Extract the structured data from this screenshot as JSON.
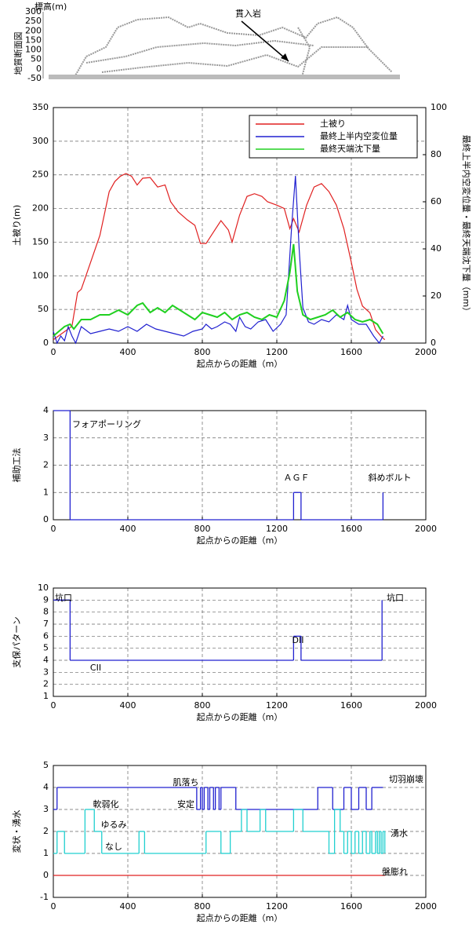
{
  "geology_section": {
    "title": "地質断面図",
    "annotation": "貫入岩",
    "axis_label": "標高(m)",
    "ylim": [
      -50,
      300
    ],
    "yticks": [
      300,
      250,
      200,
      150,
      100,
      50,
      0,
      -50
    ]
  },
  "chart_data": [
    {
      "type": "line",
      "ylabel": "土被り(m)",
      "y2label": "最終上半内空変位量・最終天端沈下量（mm）",
      "xlabel": "起点からの距離（m）",
      "xlim": [
        0,
        2000
      ],
      "xticks": [
        0,
        400,
        800,
        1200,
        1600,
        2000
      ],
      "ylim": [
        0,
        350
      ],
      "yticks": [
        0,
        50,
        100,
        150,
        200,
        250,
        300,
        350
      ],
      "y2lim": [
        0,
        100
      ],
      "y2ticks": [
        0,
        20,
        40,
        60,
        80,
        100
      ],
      "grid": true,
      "step": false,
      "legend": "upper right",
      "annotations": [],
      "series": [
        {
          "name": "土被り",
          "color": "#e02020",
          "axis": "y",
          "x": [
            0,
            50,
            100,
            130,
            150,
            200,
            250,
            300,
            330,
            360,
            390,
            420,
            450,
            480,
            520,
            560,
            600,
            630,
            670,
            720,
            760,
            790,
            820,
            860,
            900,
            940,
            960,
            1000,
            1040,
            1080,
            1120,
            1150,
            1200,
            1240,
            1270,
            1290,
            1320,
            1360,
            1400,
            1440,
            1480,
            1520,
            1560,
            1600,
            1630,
            1660,
            1700,
            1730,
            1760,
            1780
          ],
          "values": [
            5,
            15,
            25,
            75,
            80,
            120,
            160,
            225,
            240,
            248,
            252,
            248,
            235,
            245,
            246,
            232,
            235,
            210,
            195,
            183,
            175,
            148,
            148,
            165,
            182,
            168,
            150,
            190,
            218,
            222,
            218,
            210,
            205,
            200,
            170,
            185,
            165,
            205,
            232,
            237,
            225,
            205,
            170,
            120,
            80,
            55,
            45,
            20,
            10,
            5
          ]
        },
        {
          "name": "最終上半内空変位量",
          "color": "#2020d0",
          "axis": "y2",
          "x": [
            0,
            20,
            40,
            60,
            80,
            100,
            120,
            150,
            200,
            250,
            300,
            350,
            400,
            450,
            500,
            550,
            600,
            650,
            700,
            750,
            800,
            820,
            850,
            880,
            920,
            950,
            980,
            1000,
            1030,
            1060,
            1100,
            1140,
            1180,
            1220,
            1250,
            1280,
            1300,
            1320,
            1340,
            1370,
            1400,
            1440,
            1480,
            1520,
            1560,
            1580,
            1600,
            1640,
            1680,
            1720,
            1750,
            1770
          ],
          "values": [
            5,
            0,
            3,
            1,
            7,
            3,
            0,
            7,
            4,
            5,
            6,
            5,
            7,
            5,
            8,
            6,
            5,
            4,
            3,
            5,
            6,
            8,
            6,
            7,
            9,
            8,
            5,
            11,
            7,
            6,
            9,
            10,
            5,
            8,
            12,
            50,
            71,
            40,
            15,
            9,
            8,
            10,
            9,
            12,
            10,
            16,
            10,
            8,
            8,
            3,
            0,
            3
          ]
        },
        {
          "name": "最終天端沈下量",
          "color": "#20d020",
          "axis": "y2",
          "x": [
            0,
            30,
            60,
            90,
            110,
            150,
            200,
            250,
            300,
            350,
            400,
            450,
            480,
            520,
            560,
            600,
            640,
            680,
            720,
            760,
            800,
            840,
            880,
            920,
            960,
            1000,
            1040,
            1080,
            1120,
            1160,
            1200,
            1240,
            1270,
            1290,
            1310,
            1340,
            1380,
            1420,
            1460,
            1500,
            1540,
            1580,
            1620,
            1660,
            1700,
            1740,
            1770
          ],
          "values": [
            3,
            5,
            7,
            8,
            6,
            10,
            10,
            12,
            12,
            14,
            12,
            16,
            17,
            13,
            15,
            13,
            16,
            14,
            12,
            10,
            13,
            12,
            11,
            13,
            10,
            12,
            13,
            11,
            10,
            12,
            11,
            18,
            30,
            42,
            22,
            12,
            10,
            11,
            12,
            14,
            11,
            13,
            10,
            9,
            10,
            8,
            4
          ]
        }
      ]
    },
    {
      "type": "line",
      "ylabel": "補助工法",
      "xlabel": "起点からの距離（m）",
      "xlim": [
        0,
        2000
      ],
      "xticks": [
        0,
        400,
        800,
        1200,
        1600,
        2000
      ],
      "ylim": [
        0,
        4
      ],
      "yticks": [
        0,
        1,
        2,
        3,
        4
      ],
      "grid": true,
      "step": true,
      "annotations": [
        "フォアポーリング",
        "ＡＧＦ",
        "斜めボルト"
      ],
      "series": [
        {
          "color": "#2020d0",
          "axis": "y",
          "x": [
            0,
            90,
            1290,
            1330,
            1770
          ],
          "values": [
            4,
            0,
            1,
            0,
            1
          ]
        }
      ]
    },
    {
      "type": "line",
      "ylabel": "支保パターン",
      "xlabel": "起点からの距離（m）",
      "xlim": [
        0,
        2000
      ],
      "xticks": [
        0,
        400,
        800,
        1200,
        1600,
        2000
      ],
      "ylim": [
        1,
        10
      ],
      "yticks": [
        1,
        2,
        3,
        4,
        5,
        6,
        7,
        8,
        9,
        10
      ],
      "grid": true,
      "step": true,
      "annotations": [
        "坑口",
        "CII",
        "DII",
        "坑口"
      ],
      "series": [
        {
          "color": "#2020d0",
          "axis": "y",
          "x": [
            0,
            90,
            1290,
            1330,
            1765
          ],
          "values": [
            9,
            4,
            6,
            4,
            9
          ]
        }
      ]
    },
    {
      "type": "line",
      "ylabel": "変状・湧水",
      "xlabel": "起点からの距離（m）",
      "xlim": [
        0,
        2000
      ],
      "xticks": [
        0,
        400,
        800,
        1200,
        1600,
        2000
      ],
      "ylim": [
        -1,
        5
      ],
      "yticks": [
        -1,
        0,
        1,
        2,
        3,
        4,
        5
      ],
      "grid": true,
      "step": true,
      "annotations": [
        "切羽崩壊",
        "湧水",
        "盤膨れ",
        "肌落ち",
        "安定",
        "軟弱化",
        "ゆるみ",
        "なし"
      ],
      "series": [
        {
          "color": "#2020d0",
          "axis": "y",
          "x": [
            0,
            20,
            770,
            790,
            800,
            810,
            830,
            840,
            860,
            870,
            890,
            900,
            980,
            1420,
            1500,
            1560,
            1600,
            1640,
            1680,
            1710,
            1770
          ],
          "values": [
            3,
            4,
            3,
            4,
            3,
            4,
            3,
            4,
            3,
            4,
            3,
            4,
            3,
            4,
            3,
            4,
            3,
            4,
            3,
            4,
            4
          ]
        },
        {
          "color": "#20d0d0",
          "axis": "y",
          "x": [
            0,
            20,
            60,
            170,
            220,
            260,
            460,
            490,
            820,
            900,
            950,
            1010,
            1040,
            1110,
            1140,
            1290,
            1340,
            1480,
            1510,
            1540,
            1560,
            1580,
            1600,
            1620,
            1640,
            1660,
            1680,
            1700,
            1710,
            1730,
            1740,
            1750,
            1760,
            1770,
            1780
          ],
          "values": [
            1,
            2,
            1,
            3,
            2,
            1,
            2,
            1,
            2,
            1,
            2,
            3,
            2,
            3,
            2,
            3,
            2,
            1,
            3,
            2,
            1,
            2,
            1,
            2,
            1,
            2,
            1,
            2,
            1,
            2,
            1,
            2,
            1,
            2,
            1
          ]
        },
        {
          "color": "#e02020",
          "axis": "y",
          "x": [
            0,
            1780
          ],
          "values": [
            0,
            0
          ]
        }
      ]
    }
  ]
}
